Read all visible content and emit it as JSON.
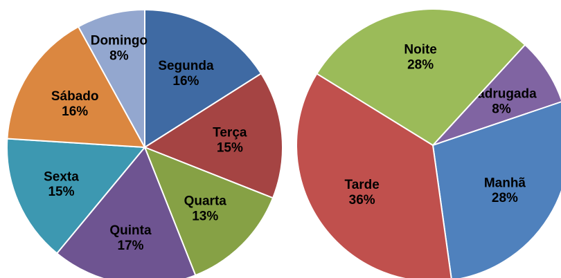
{
  "chart_data": [
    {
      "type": "pie",
      "categories": [
        "Segunda",
        "Terça",
        "Quarta",
        "Quinta",
        "Sexta",
        "Sábado",
        "Domingo"
      ],
      "values": [
        16,
        15,
        13,
        17,
        15,
        16,
        8
      ],
      "value_labels": [
        "16%",
        "15%",
        "13%",
        "17%",
        "15%",
        "16%",
        "8%"
      ],
      "colors": [
        "#3f6aa3",
        "#a54443",
        "#86a145",
        "#6e5491",
        "#3d98b1",
        "#db8740",
        "#93a7cf"
      ]
    },
    {
      "type": "pie",
      "categories": [
        "Madrugada",
        "Manhã",
        "Tarde",
        "Noite"
      ],
      "values": [
        8,
        28,
        36,
        28
      ],
      "value_labels": [
        "8%",
        "28%",
        "36%",
        "28%"
      ],
      "colors": [
        "#8064a2",
        "#4f81bd",
        "#c0504d",
        "#9bbb59"
      ]
    }
  ]
}
